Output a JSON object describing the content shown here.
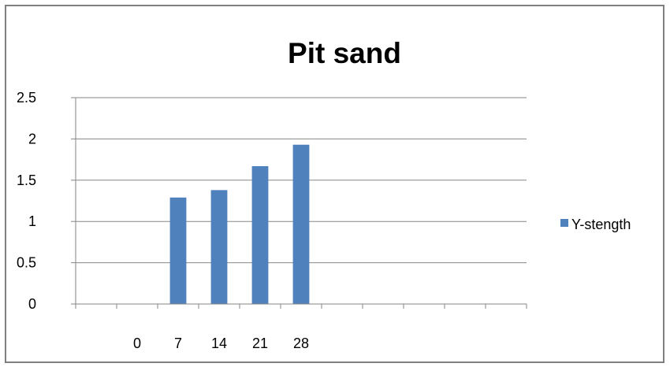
{
  "chart_data": {
    "type": "bar",
    "title": "Pit sand",
    "xlabel": "",
    "ylabel": "",
    "categories": [
      "",
      "0",
      "7",
      "14",
      "21",
      "28",
      "",
      "",
      "",
      "",
      ""
    ],
    "series": [
      {
        "name": "Y-stength",
        "color": "#4f81bd",
        "values": [
          null,
          null,
          1.29,
          1.38,
          1.67,
          1.93,
          null,
          null,
          null,
          null,
          null
        ]
      }
    ],
    "ylim": [
      0,
      2.5
    ],
    "yticks": [
      "0",
      "0.5",
      "1",
      "1.5",
      "2",
      "2.5"
    ],
    "grid": true,
    "legend": "right"
  }
}
